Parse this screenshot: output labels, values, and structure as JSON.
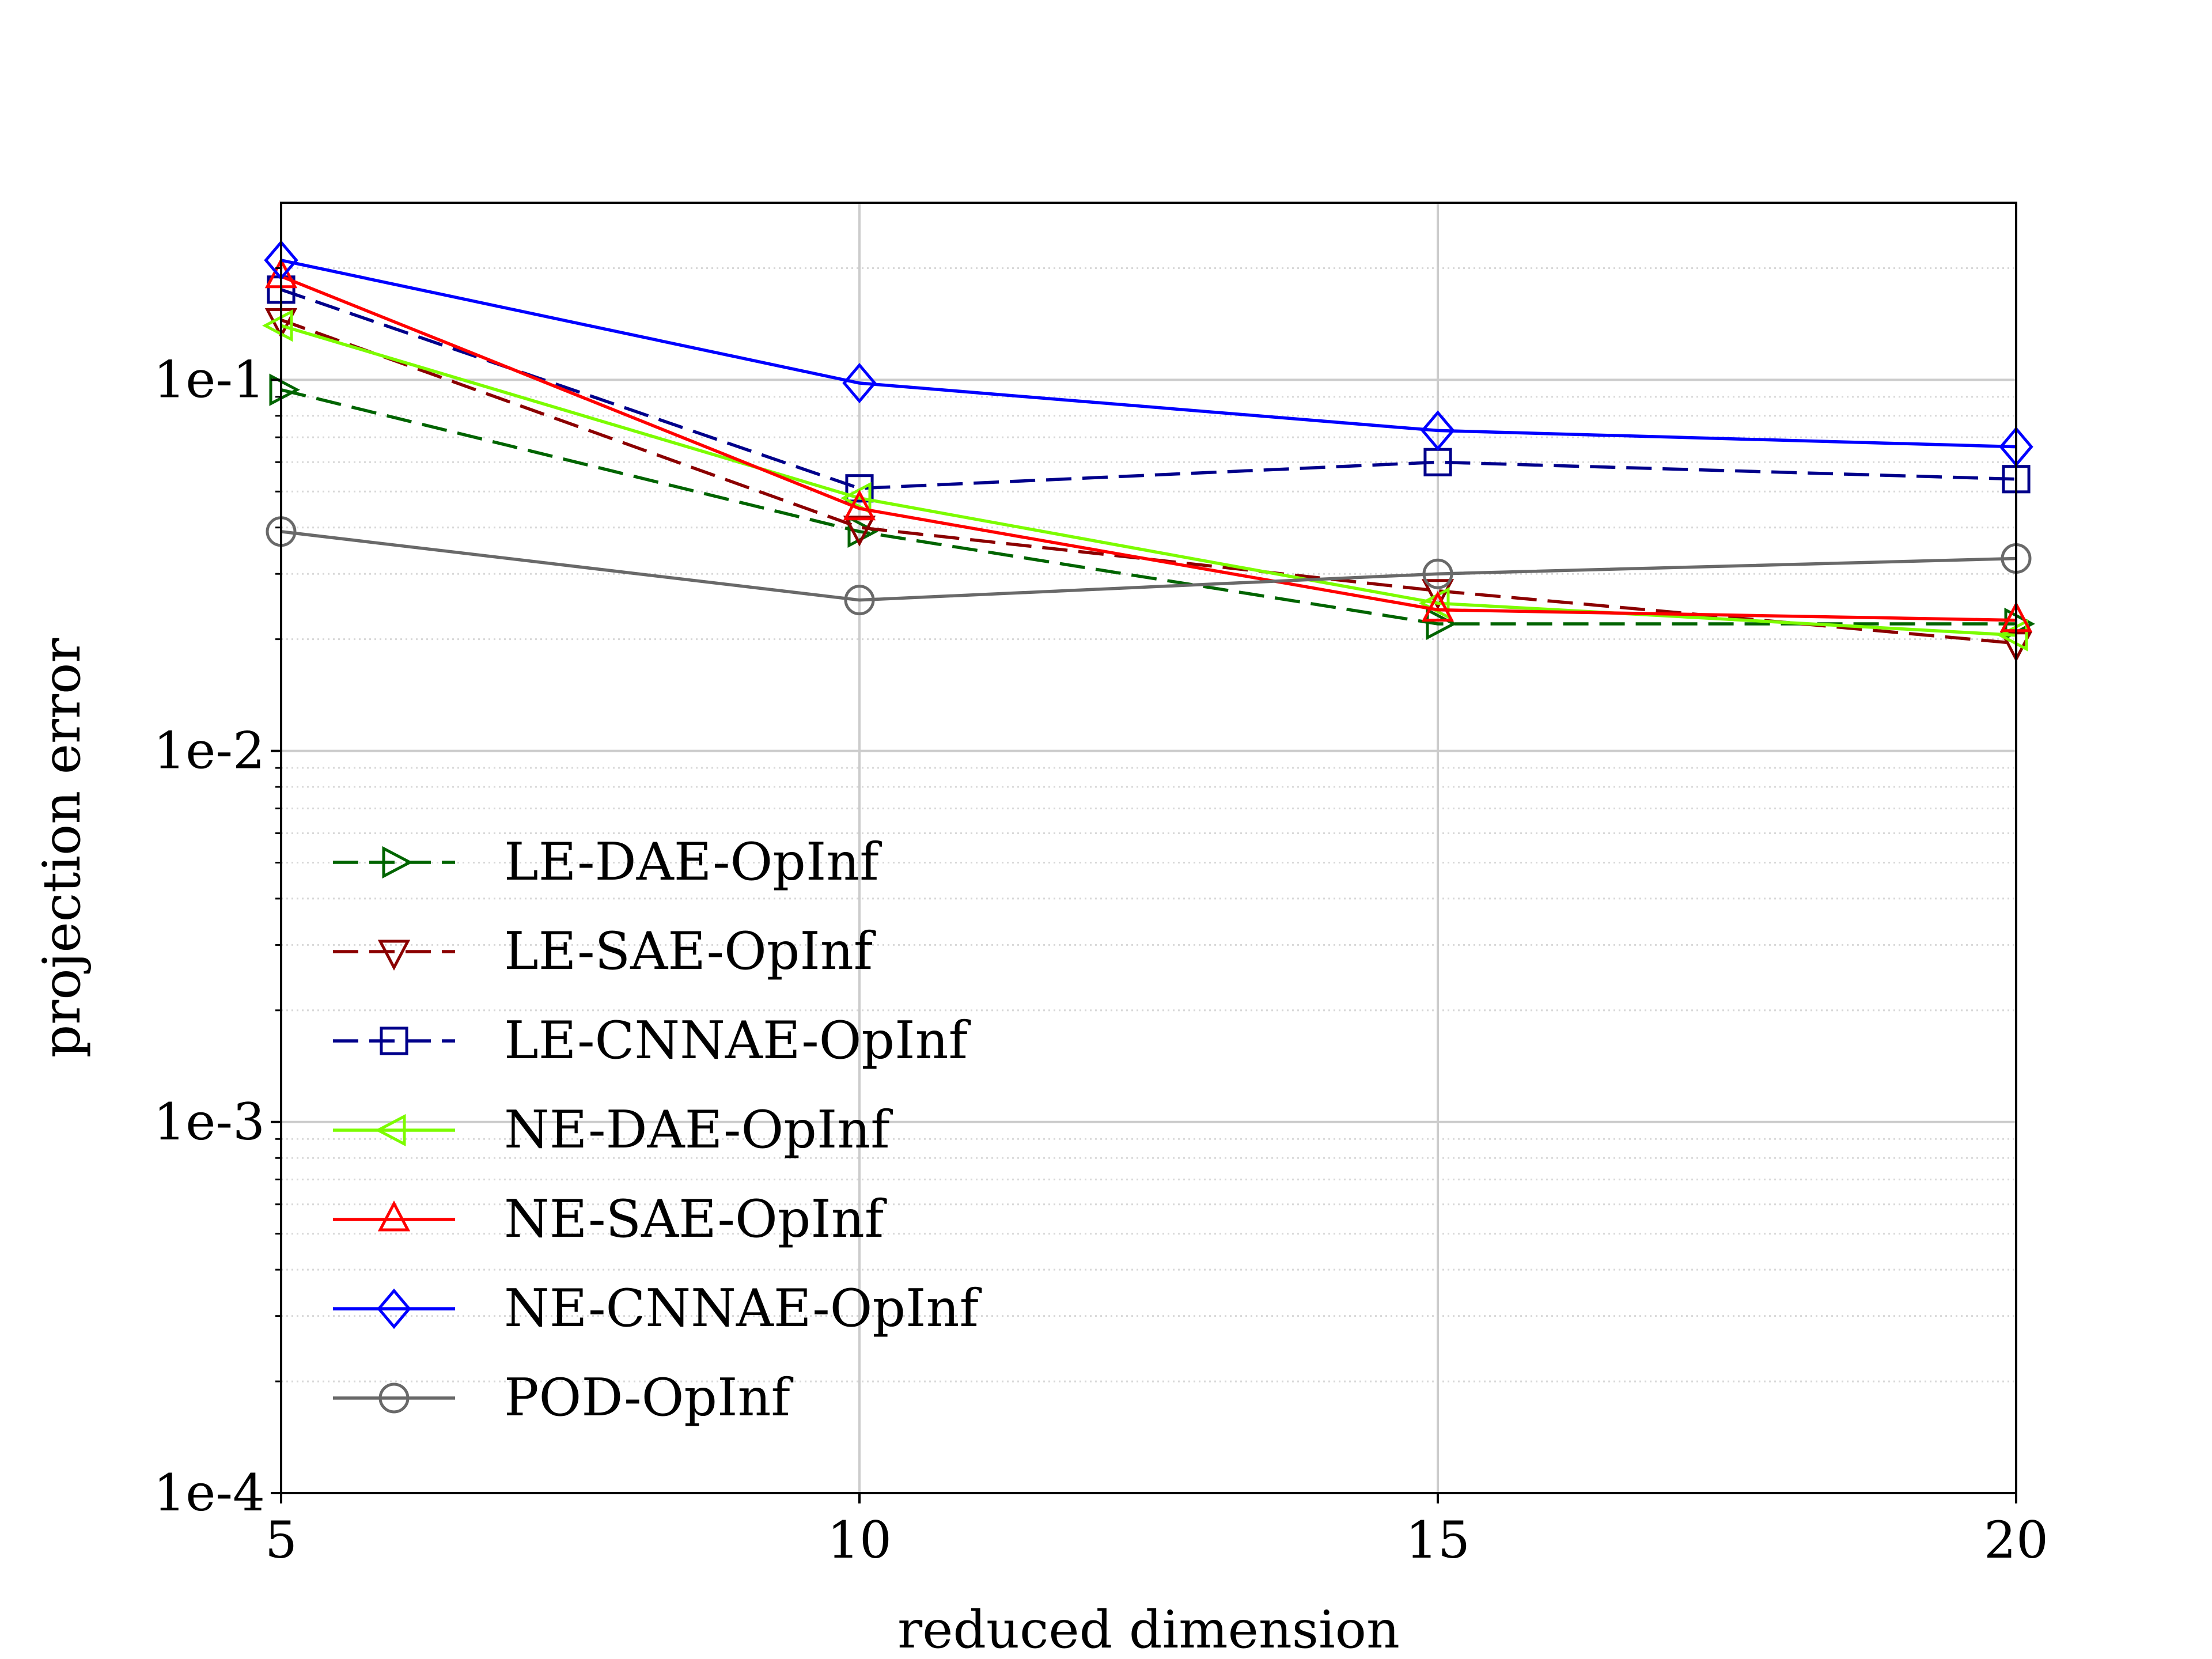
{
  "chart_data": {
    "type": "line",
    "xlabel": "reduced dimension",
    "ylabel": "projection error",
    "x": [
      5,
      10,
      15,
      20
    ],
    "xlim": [
      5,
      20
    ],
    "ylim": [
      0.0001,
      0.3
    ],
    "y_scale": "log",
    "x_ticks": [
      "5",
      "10",
      "15",
      "20"
    ],
    "x_tick_values": [
      5,
      10,
      15,
      20
    ],
    "y_ticks": [
      "1e-4",
      "1e-3",
      "1e-2",
      "1e-1"
    ],
    "y_tick_values": [
      0.0001,
      0.001,
      0.01,
      0.1
    ],
    "grid": true,
    "legend_position": "lower-left",
    "series": [
      {
        "name": "LE-DAE-OpInf",
        "values": [
          0.094,
          0.039,
          0.022,
          0.022
        ],
        "color": "#006400",
        "dash": "dashed",
        "marker": "triangle-right"
      },
      {
        "name": "LE-SAE-OpInf",
        "values": [
          0.145,
          0.04,
          0.027,
          0.0195
        ],
        "color": "#8b0000",
        "dash": "dashed",
        "marker": "triangle-down"
      },
      {
        "name": "LE-CNNAE-OpInf",
        "values": [
          0.175,
          0.051,
          0.06,
          0.054
        ],
        "color": "#00008b",
        "dash": "dashed",
        "marker": "square"
      },
      {
        "name": "NE-DAE-OpInf",
        "values": [
          0.14,
          0.048,
          0.025,
          0.0205
        ],
        "color": "#7cfc00",
        "dash": "solid",
        "marker": "triangle-left"
      },
      {
        "name": "NE-SAE-OpInf",
        "values": [
          0.19,
          0.045,
          0.024,
          0.0225
        ],
        "color": "#ff0000",
        "dash": "solid",
        "marker": "triangle-up"
      },
      {
        "name": "NE-CNNAE-OpInf",
        "values": [
          0.21,
          0.098,
          0.073,
          0.066
        ],
        "color": "#0000ff",
        "dash": "solid",
        "marker": "diamond"
      },
      {
        "name": "POD-OpInf",
        "values": [
          0.039,
          0.0255,
          0.03,
          0.033
        ],
        "color": "#696969",
        "dash": "solid",
        "marker": "circle"
      }
    ]
  }
}
